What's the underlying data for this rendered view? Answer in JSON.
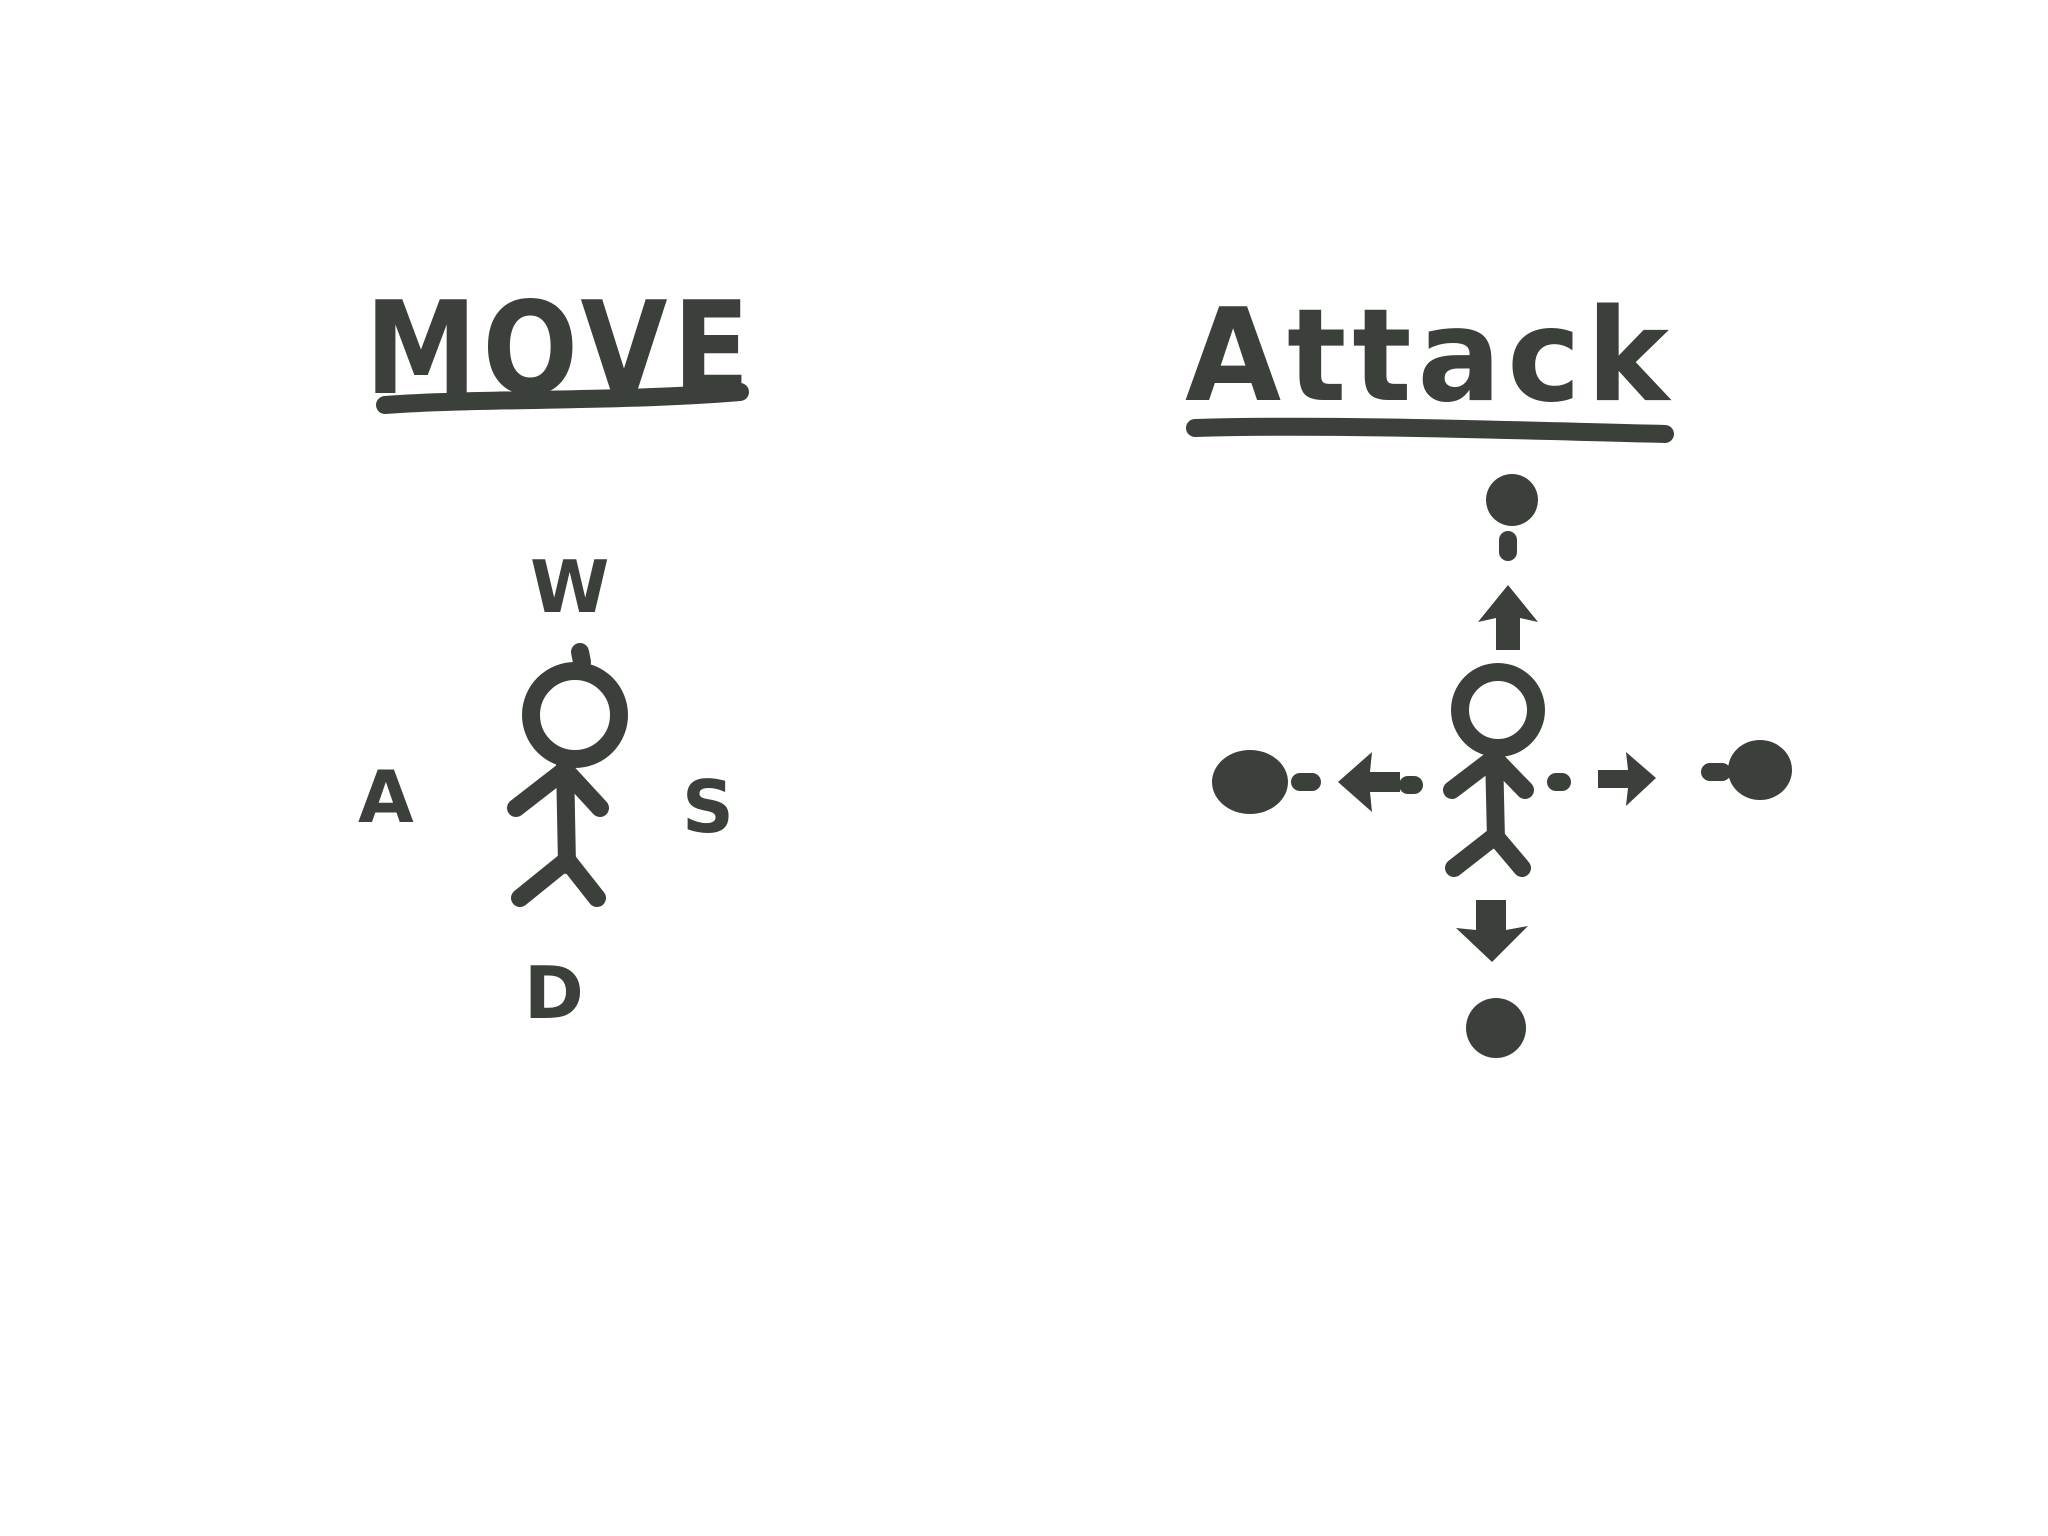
{
  "move": {
    "title": "MOVE",
    "keys": {
      "up": "W",
      "left": "A",
      "right": "S",
      "down": "D"
    }
  },
  "attack": {
    "title": "Attack"
  },
  "colors": {
    "ink": "#3b403a",
    "background": "#ffffff"
  }
}
